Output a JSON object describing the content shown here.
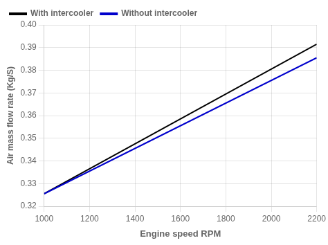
{
  "chart_data": {
    "type": "line",
    "xlabel": "Engine speed RPM",
    "ylabel": "Air mass flow rate (Kg/S)",
    "series": [
      {
        "name": "With intercooler",
        "color": "#000000",
        "x": [
          1000,
          2200
        ],
        "values": [
          0.3255,
          0.3915
        ]
      },
      {
        "name": "Without intercooler",
        "color": "#0000cc",
        "x": [
          1000,
          2200
        ],
        "values": [
          0.3255,
          0.3855
        ]
      }
    ],
    "xlim": [
      1000,
      2200
    ],
    "xticks": [
      1000,
      1200,
      1400,
      1600,
      1800,
      2000,
      2200
    ],
    "ylim": [
      0.32,
      0.4
    ],
    "yticks": [
      0.32,
      0.33,
      0.34,
      0.35,
      0.36,
      0.37,
      0.38,
      0.39,
      {
        "value": 0.4,
        "label": "0.40"
      }
    ],
    "grid": true,
    "legend": "upper left"
  }
}
